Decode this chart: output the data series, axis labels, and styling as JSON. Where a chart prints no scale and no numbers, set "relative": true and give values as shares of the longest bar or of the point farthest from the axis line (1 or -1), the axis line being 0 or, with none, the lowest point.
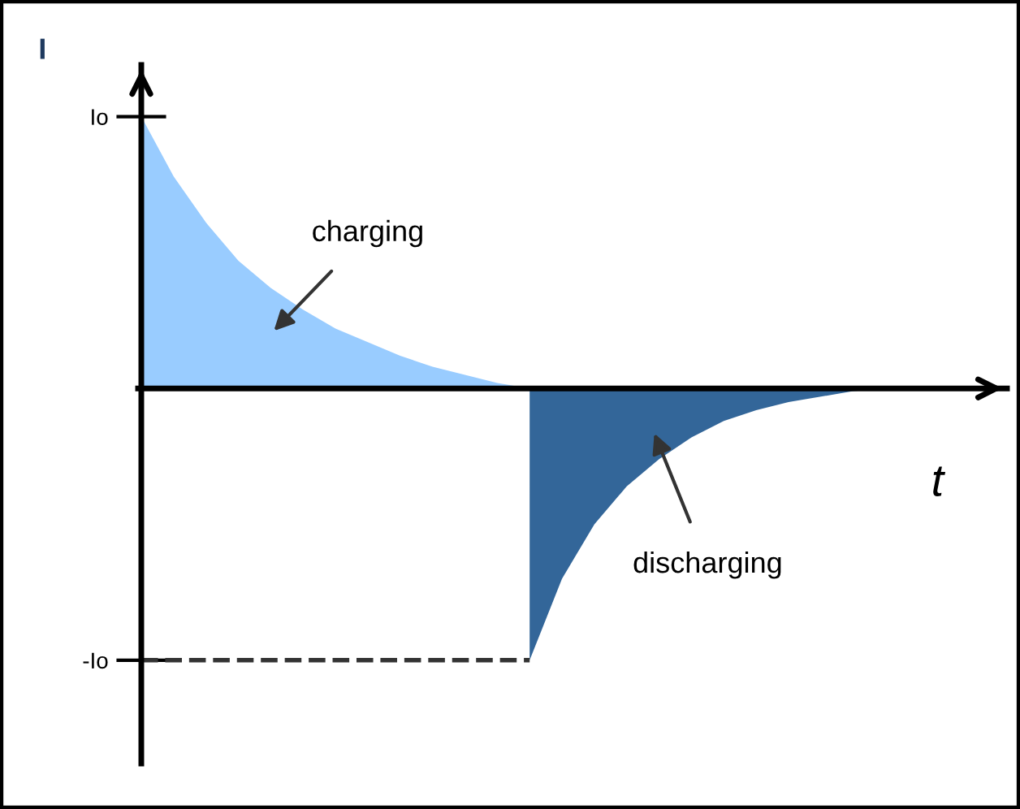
{
  "chart_data": {
    "type": "area",
    "xlabel": "t",
    "ylabel": "I",
    "categories": [
      null,
      null,
      null,
      null,
      null,
      null,
      null,
      null,
      null,
      null,
      null,
      null,
      null,
      null,
      null,
      null,
      null,
      null,
      null,
      null,
      null,
      null,
      null,
      null
    ],
    "series": [
      {
        "color": "#99ccff",
        "values": [
          1,
          0.78,
          0.61,
          0.47,
          0.37,
          0.29,
          0.22,
          0.17,
          0.12,
          0.08,
          0.05,
          0.02,
          0,
          null,
          null,
          null,
          null,
          null,
          null,
          null,
          null,
          null,
          null,
          null
        ]
      },
      {
        "color": "#336699",
        "values": [
          null,
          null,
          null,
          null,
          null,
          null,
          null,
          null,
          null,
          null,
          null,
          null,
          -1,
          -0.7,
          -0.5,
          -0.36,
          -0.26,
          -0.18,
          -0.12,
          -0.08,
          -0.05,
          -0.03,
          -0.01,
          0
        ]
      }
    ],
    "relative": true,
    "ref_lines": [
      {
        "axis": "y",
        "value": -1,
        "line_style": "dashed",
        "color": "#333333"
      }
    ],
    "annotations": [
      "Io",
      "-Io",
      "charging",
      "discharging"
    ],
    "grid": false
  }
}
